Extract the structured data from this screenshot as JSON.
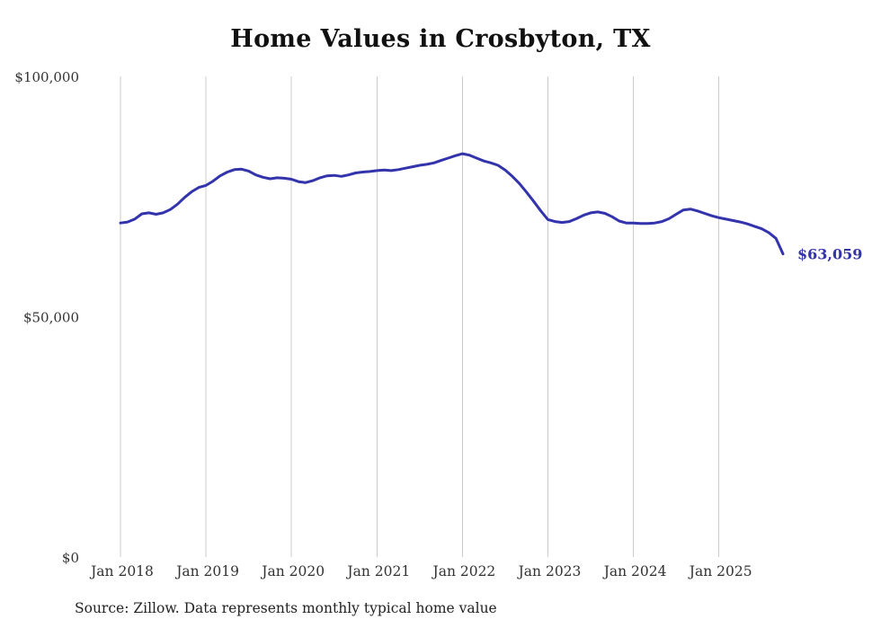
{
  "chart_data": {
    "type": "line",
    "title": "Home Values in Crosbyton, TX",
    "series_name": "Monthly typical home value",
    "x_tick_labels": [
      "Jan 2018",
      "Jan 2019",
      "Jan 2020",
      "Jan 2021",
      "Jan 2022",
      "Jan 2023",
      "Jan 2024",
      "Jan 2025"
    ],
    "y_tick_labels": [
      "$0",
      "$50,000",
      "$100,000"
    ],
    "y_ticks": [
      0,
      50000,
      100000
    ],
    "ylim": [
      0,
      100000
    ],
    "start_month": "2018-01",
    "end_month": "2025-10",
    "values": [
      69500,
      69700,
      70300,
      71400,
      71600,
      71300,
      71600,
      72300,
      73400,
      74800,
      76000,
      76900,
      77300,
      78200,
      79300,
      80100,
      80600,
      80700,
      80300,
      79500,
      79000,
      78700,
      78900,
      78800,
      78600,
      78100,
      77900,
      78300,
      78900,
      79300,
      79400,
      79200,
      79500,
      79900,
      80100,
      80200,
      80400,
      80500,
      80400,
      80600,
      80900,
      81200,
      81500,
      81700,
      82000,
      82500,
      83000,
      83500,
      83900,
      83600,
      83000,
      82400,
      82000,
      81500,
      80500,
      79200,
      77700,
      75900,
      74000,
      72000,
      70200,
      69800,
      69600,
      69800,
      70400,
      71100,
      71600,
      71800,
      71500,
      70800,
      69900,
      69500,
      69500,
      69400,
      69400,
      69500,
      69800,
      70400,
      71300,
      72200,
      72400,
      72000,
      71500,
      71000,
      70600,
      70300,
      70000,
      69700,
      69300,
      68800,
      68300,
      67500,
      66300,
      63059
    ],
    "end_label": "$63,059",
    "line_color": "#3333ab",
    "grid": "vertical-only",
    "legend": "none",
    "source_note": "Source: Zillow. Data represents monthly typical home value"
  }
}
